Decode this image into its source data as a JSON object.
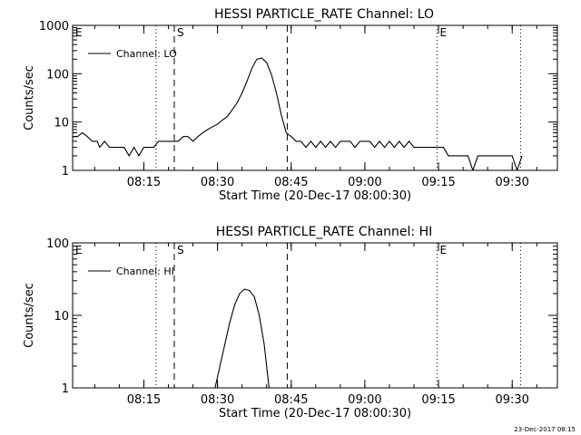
{
  "footer": {
    "timestamp": "23-Dec-2017 08:15"
  },
  "chart_data": [
    {
      "type": "line",
      "title": "HESSI PARTICLE_RATE Channel: LO",
      "xlabel": "Start Time (20-Dec-17 08:00:30)",
      "ylabel": "Counts/sec",
      "yscale": "log",
      "ylim": [
        1,
        1000
      ],
      "yticks": [
        "1",
        "10",
        "100",
        "1000"
      ],
      "xlim_minutes": [
        0.5,
        99.2
      ],
      "xticks": [
        {
          "t": 15,
          "label": "08:15"
        },
        {
          "t": 30,
          "label": "08:30"
        },
        {
          "t": 45,
          "label": "08:45"
        },
        {
          "t": 60,
          "label": "09:00"
        },
        {
          "t": 75,
          "label": "09:15"
        },
        {
          "t": 90,
          "label": "09:30"
        }
      ],
      "markers": [
        {
          "t": 17.5,
          "style": "dotted",
          "label": ""
        },
        {
          "t": 21.2,
          "style": "dashed",
          "label": "S"
        },
        {
          "t": 44.2,
          "style": "dashed",
          "label": ""
        },
        {
          "t": 74.7,
          "style": "dotted",
          "label": "E"
        },
        {
          "t": 91.7,
          "style": "dotted",
          "label": ""
        }
      ],
      "corner_label": "E",
      "legend": {
        "placement": "top-left",
        "entry": "Channel: LO"
      },
      "series": [
        {
          "name": "Channel: LO",
          "points": [
            [
              0.5,
              5
            ],
            [
              1.5,
              5
            ],
            [
              2.5,
              6
            ],
            [
              3.5,
              5
            ],
            [
              4.5,
              4
            ],
            [
              5.5,
              4
            ],
            [
              6,
              3
            ],
            [
              7,
              4
            ],
            [
              8,
              3
            ],
            [
              9,
              3
            ],
            [
              10,
              3
            ],
            [
              11,
              3
            ],
            [
              12,
              2
            ],
            [
              13,
              3
            ],
            [
              14,
              2
            ],
            [
              15,
              3
            ],
            [
              16,
              3
            ],
            [
              17,
              3
            ],
            [
              18,
              4
            ],
            [
              19,
              4
            ],
            [
              20,
              4
            ],
            [
              21,
              4
            ],
            [
              22,
              4
            ],
            [
              23,
              5
            ],
            [
              24,
              5
            ],
            [
              25,
              4
            ],
            [
              26,
              5
            ],
            [
              27,
              6
            ],
            [
              28,
              7
            ],
            [
              29,
              8
            ],
            [
              30,
              9
            ],
            [
              31,
              11
            ],
            [
              32,
              13
            ],
            [
              33,
              18
            ],
            [
              34,
              25
            ],
            [
              35,
              40
            ],
            [
              36,
              70
            ],
            [
              37,
              130
            ],
            [
              38,
              200
            ],
            [
              39,
              210
            ],
            [
              40,
              170
            ],
            [
              41,
              95
            ],
            [
              42,
              40
            ],
            [
              43,
              14
            ],
            [
              44,
              6
            ],
            [
              45,
              5
            ],
            [
              46,
              4
            ],
            [
              47,
              4
            ],
            [
              48,
              3
            ],
            [
              49,
              4
            ],
            [
              50,
              3
            ],
            [
              51,
              4
            ],
            [
              52,
              3
            ],
            [
              53,
              4
            ],
            [
              54,
              3
            ],
            [
              55,
              4
            ],
            [
              56,
              4
            ],
            [
              57,
              4
            ],
            [
              58,
              3
            ],
            [
              59,
              4
            ],
            [
              60,
              4
            ],
            [
              61,
              4
            ],
            [
              62,
              3
            ],
            [
              63,
              4
            ],
            [
              64,
              3
            ],
            [
              65,
              4
            ],
            [
              66,
              3
            ],
            [
              67,
              4
            ],
            [
              68,
              3
            ],
            [
              69,
              4
            ],
            [
              70,
              3
            ],
            [
              71,
              3
            ],
            [
              72,
              3
            ],
            [
              73,
              3
            ],
            [
              74,
              3
            ],
            [
              75,
              3
            ],
            [
              76,
              3
            ],
            [
              77,
              2
            ],
            [
              78,
              2
            ],
            [
              79,
              2
            ],
            [
              80,
              2
            ],
            [
              81,
              2
            ],
            [
              82,
              1
            ],
            [
              83,
              2
            ],
            [
              84,
              2
            ],
            [
              85,
              2
            ],
            [
              86,
              2
            ],
            [
              87,
              2
            ],
            [
              88,
              2
            ],
            [
              89,
              2
            ],
            [
              90,
              2
            ],
            [
              91,
              1
            ],
            [
              92,
              2
            ]
          ]
        }
      ]
    },
    {
      "type": "line",
      "title": "HESSI PARTICLE_RATE Channel: HI",
      "xlabel": "Start Time (20-Dec-17 08:00:30)",
      "ylabel": "Counts/sec",
      "yscale": "log",
      "ylim": [
        1,
        100
      ],
      "yticks": [
        "1",
        "10",
        "100"
      ],
      "xlim_minutes": [
        0.5,
        99.2
      ],
      "xticks": [
        {
          "t": 15,
          "label": "08:15"
        },
        {
          "t": 30,
          "label": "08:30"
        },
        {
          "t": 45,
          "label": "08:45"
        },
        {
          "t": 60,
          "label": "09:00"
        },
        {
          "t": 75,
          "label": "09:15"
        },
        {
          "t": 90,
          "label": "09:30"
        }
      ],
      "markers": [
        {
          "t": 17.5,
          "style": "dotted",
          "label": ""
        },
        {
          "t": 21.2,
          "style": "dashed",
          "label": "S"
        },
        {
          "t": 44.2,
          "style": "dashed",
          "label": ""
        },
        {
          "t": 74.7,
          "style": "dotted",
          "label": "E"
        },
        {
          "t": 91.7,
          "style": "dotted",
          "label": ""
        }
      ],
      "corner_label": "E",
      "legend": {
        "placement": "top-left",
        "entry": "Channel: HI"
      },
      "series": [
        {
          "name": "Channel: HI",
          "points": [
            [
              29.5,
              1
            ],
            [
              30.5,
              2
            ],
            [
              31.5,
              4
            ],
            [
              32.5,
              8
            ],
            [
              33.5,
              14
            ],
            [
              34.5,
              20
            ],
            [
              35.5,
              23
            ],
            [
              36.5,
              22
            ],
            [
              37.5,
              18
            ],
            [
              38.5,
              10
            ],
            [
              39.5,
              4
            ],
            [
              40.5,
              1
            ]
          ]
        }
      ]
    }
  ]
}
